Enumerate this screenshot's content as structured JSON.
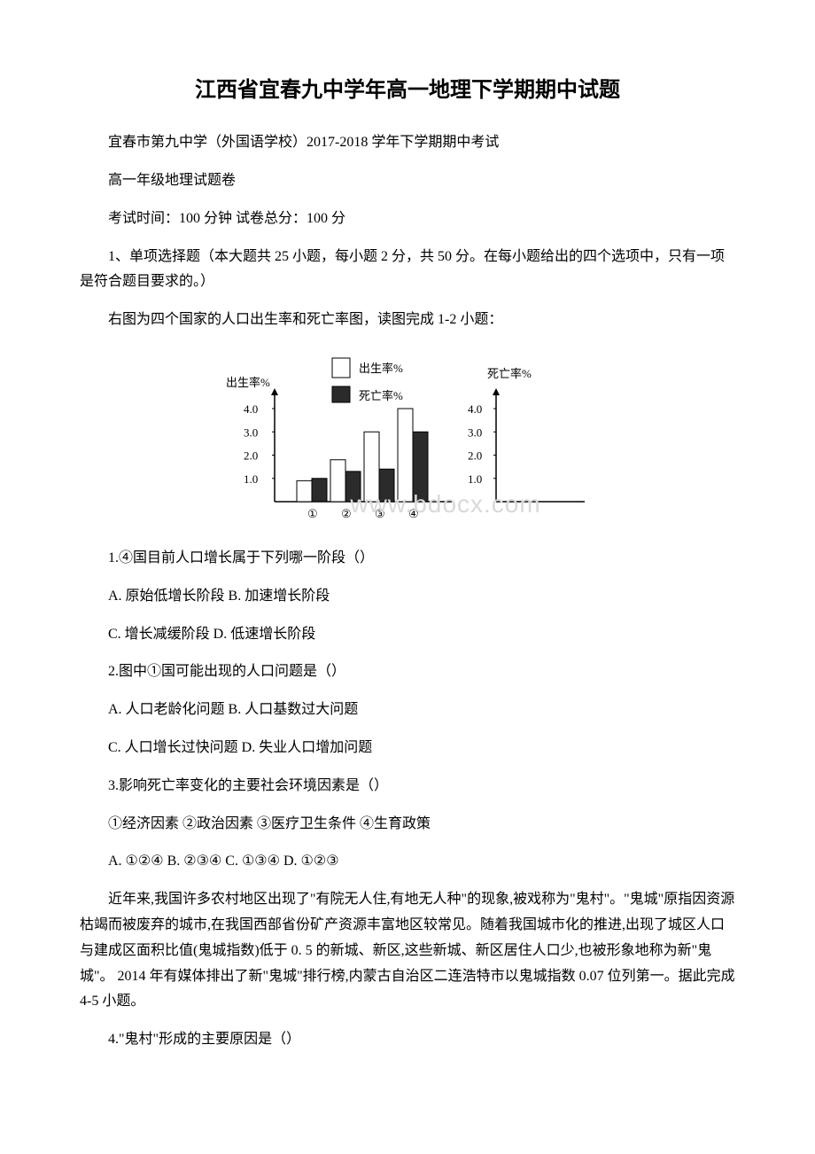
{
  "title": "江西省宜春九中学年高一地理下学期期中试题",
  "subtitle1": "宜春市第九中学（外国语学校）2017-2018 学年下学期期中考试",
  "subtitle2": "高一年级地理试题卷",
  "exam_info": "考试时间：100 分钟 试卷总分：100 分",
  "section1_intro": "1、单项选择题（本大题共 25 小题，每小题 2 分，共 50 分。在每小题给出的四个选项中，只有一项是符合题目要求的。）",
  "chart_intro": "右图为四个国家的人口出生率和死亡率图，读图完成 1-2 小题：",
  "chart": {
    "type": "bar",
    "left_ylabel": "出生率%",
    "legend_birth": "出生率%",
    "legend_death": "死亡率%",
    "right_ylabel": "死亡率%",
    "y_ticks": [
      "1.0",
      "2.0",
      "3.0",
      "4.0"
    ],
    "categories": [
      "①",
      "②",
      "③",
      "④"
    ],
    "birth_values": [
      0.9,
      1.8,
      3.0,
      4.0
    ],
    "death_values": [
      1.0,
      1.3,
      1.4,
      3.0
    ],
    "birth_color": "#ffffff",
    "death_color": "#2b2b2b",
    "border_color": "#000000",
    "axis_color": "#000000",
    "text_color": "#000000",
    "label_fontsize": 13,
    "tick_fontsize": 13
  },
  "q1": "1.④国目前人口增长属于下列哪一阶段（）",
  "q1_ab": "A. 原始低增长阶段 B. 加速增长阶段",
  "q1_cd": "C. 增长减缓阶段 D. 低速增长阶段",
  "q2": "2.图中①国可能出现的人口问题是（）",
  "q2_ab": "A. 人口老龄化问题  B. 人口基数过大问题",
  "q2_cd": "C. 人口增长过快问题  D. 失业人口增加问题",
  "q3": "3.影响死亡率变化的主要社会环境因素是（）",
  "q3_opts": "①经济因素  ②政治因素  ③医疗卫生条件  ④生育政策",
  "q3_abcd": "A. ①②④ B. ②③④ C. ①③④ D. ①②③",
  "passage2": "近年来,我国许多农村地区出现了\"有院无人住,有地无人种\"的现象,被戏称为\"鬼村\"。\"鬼城\"原指因资源枯竭而被废弃的城市,在我国西部省份矿产资源丰富地区较常见。随着我国城市化的推进,出现了城区人口与建成区面积比值(鬼城指数)低于 0. 5 的新城、新区,这些新城、新区居住人口少,也被形象地称为新\"鬼城\"。 2014 年有媒体排出了新\"鬼城\"排行榜,内蒙古自治区二连浩特市以鬼城指数 0.07 位列第一。据此完成 4-5 小题。",
  "q4": "4.\"鬼村\"形成的主要原因是（）",
  "watermark": "www.bdocx.com"
}
